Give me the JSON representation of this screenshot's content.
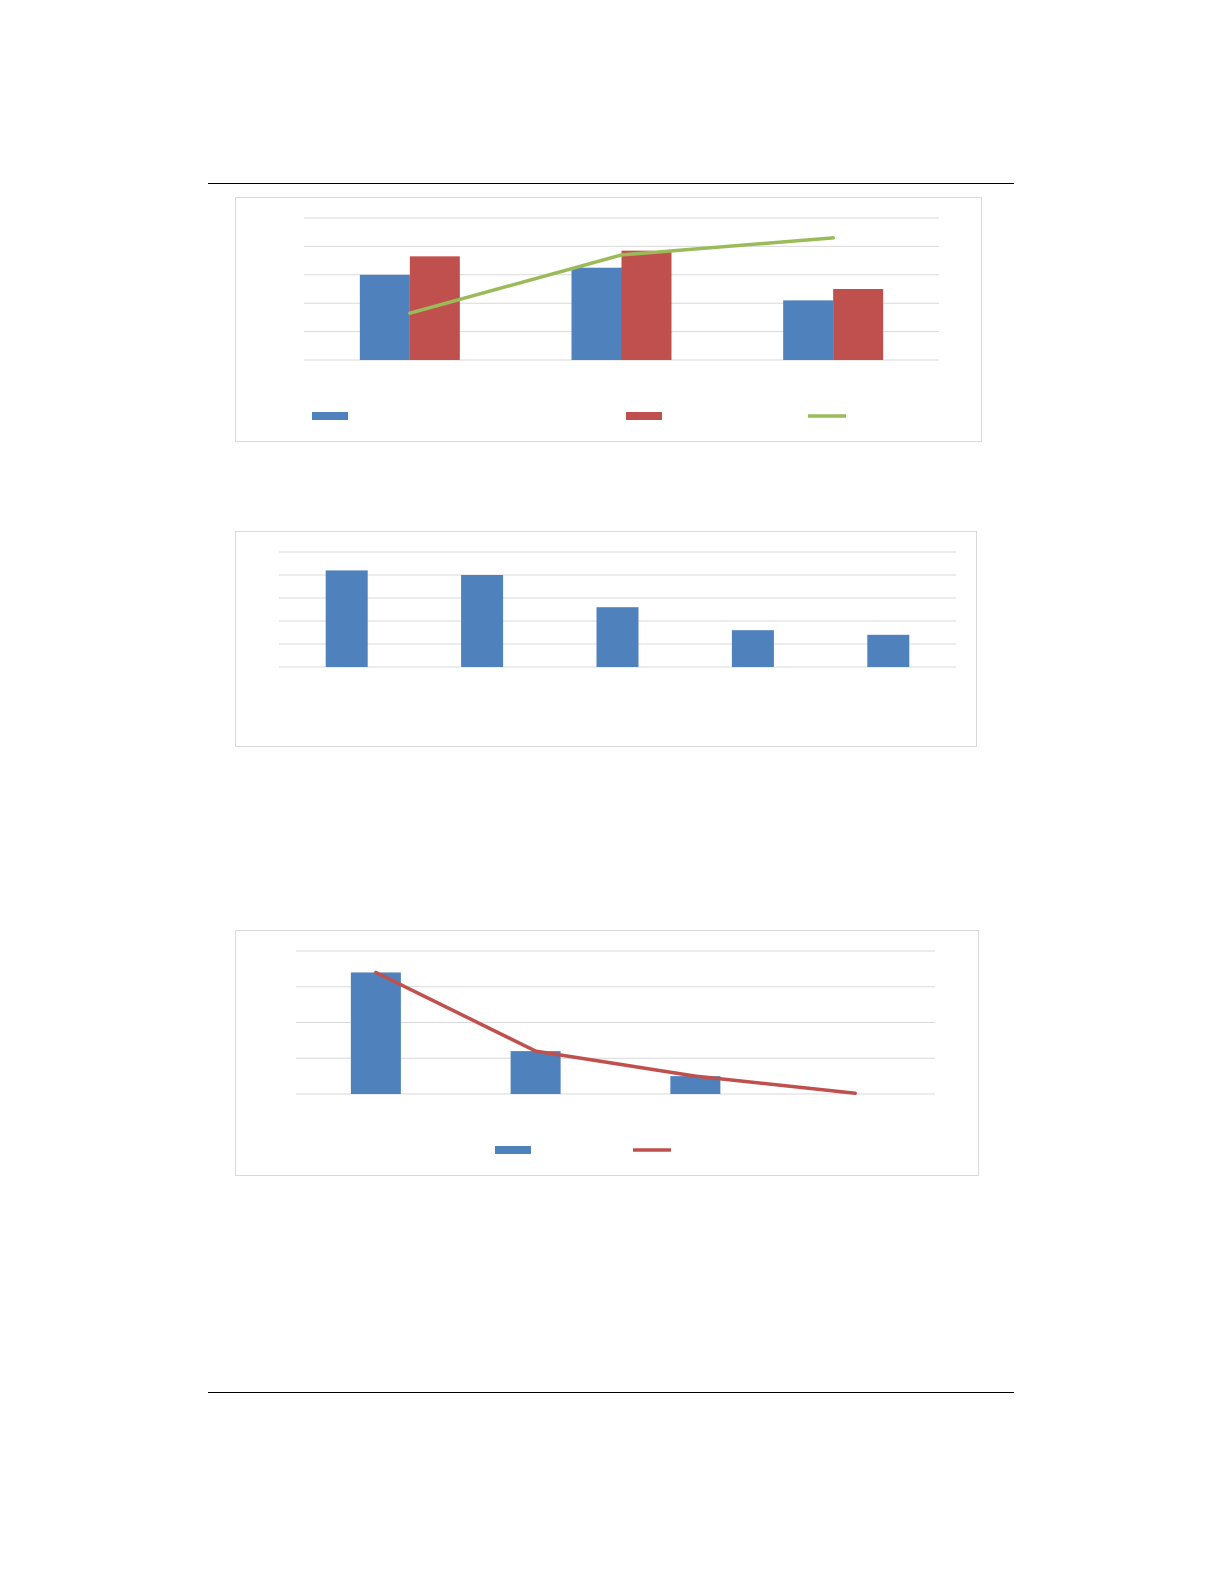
{
  "colors": {
    "blue": "#4f81bd",
    "red": "#c0504d",
    "green": "#9bbb59",
    "grid": "#d9d9d9",
    "rule": "#000000",
    "frame": "#d9d9d9"
  },
  "chart_data": [
    {
      "type": "bar",
      "grid": true,
      "legend_position": "bottom",
      "ylim": [
        0,
        5
      ],
      "categories": [
        "",
        "",
        ""
      ],
      "series": [
        {
          "kind": "bar",
          "color": "#4f81bd",
          "values": [
            3.0,
            3.25,
            2.1
          ]
        },
        {
          "kind": "bar",
          "color": "#c0504d",
          "values": [
            3.65,
            3.85,
            2.5
          ]
        },
        {
          "kind": "line",
          "color": "#9bbb59",
          "values": [
            1.65,
            3.7,
            4.3
          ]
        }
      ]
    },
    {
      "type": "bar",
      "grid": true,
      "legend_position": "none",
      "ylim": [
        0,
        5
      ],
      "categories": [
        "",
        "",
        "",
        "",
        ""
      ],
      "series": [
        {
          "kind": "bar",
          "color": "#4f81bd",
          "values": [
            4.2,
            4.0,
            2.6,
            1.6,
            1.4
          ]
        }
      ]
    },
    {
      "type": "bar",
      "grid": true,
      "legend_position": "bottom",
      "ylim": [
        0,
        4
      ],
      "categories": [
        "",
        "",
        "",
        ""
      ],
      "series": [
        {
          "kind": "bar",
          "color": "#4f81bd",
          "values": [
            3.4,
            1.2,
            0.5,
            0
          ]
        },
        {
          "kind": "line",
          "color": "#c0504d",
          "values": [
            3.4,
            1.2,
            0.5,
            0.02
          ]
        }
      ]
    }
  ]
}
